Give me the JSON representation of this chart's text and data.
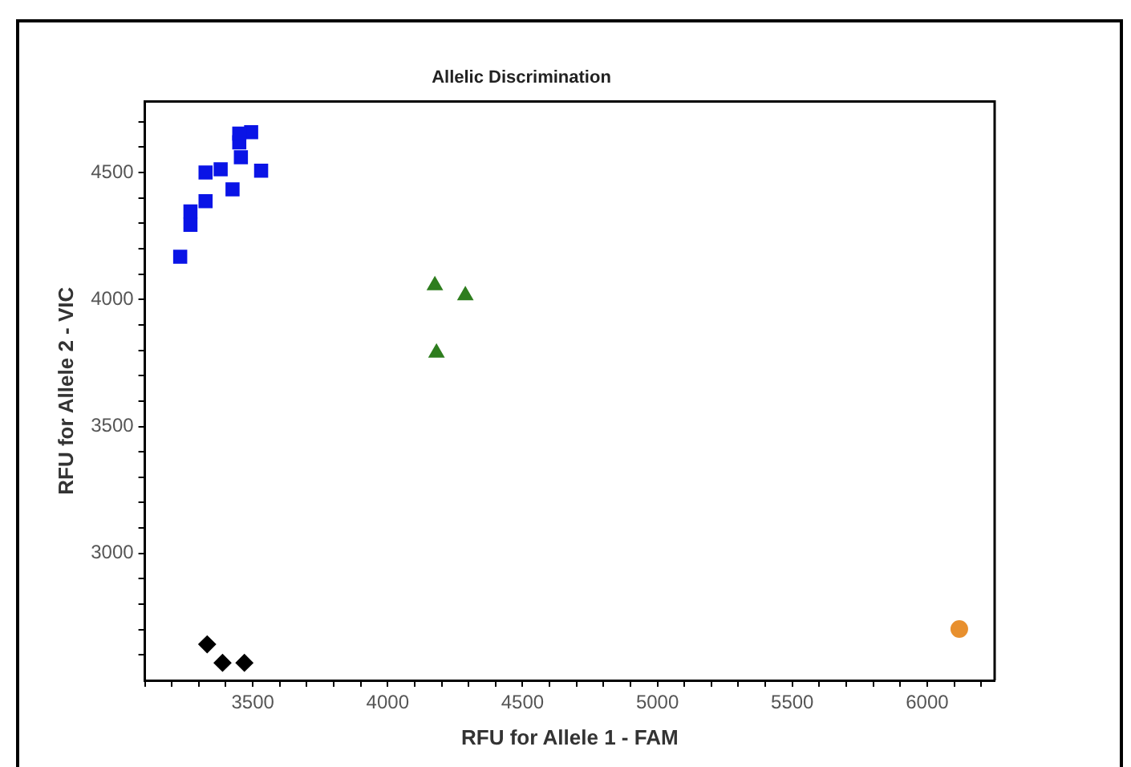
{
  "chart_data": {
    "type": "scatter",
    "title": "Allelic Discrimination",
    "xlabel": "RFU for Allele 1 - FAM",
    "ylabel": "RFU for Allele 2 - VIC",
    "series": [
      {
        "color": "#0a14e6",
        "marker": "square",
        "x": [
          3231,
          3269,
          3269,
          3325,
          3325,
          3381,
          3425,
          3450,
          3456,
          3494,
          3531,
          3450
        ],
        "values": [
          4168,
          4294,
          4347,
          4387,
          4500,
          4513,
          4434,
          4619,
          4560,
          4659,
          4507,
          4653
        ]
      },
      {
        "color": "#2e7d1e",
        "marker": "triangle",
        "x": [
          4175,
          4288,
          4181
        ],
        "values": [
          4055,
          4016,
          3790
        ]
      },
      {
        "color": "#000000",
        "marker": "diamond",
        "x": [
          3331,
          3388,
          3469
        ],
        "values": [
          2642,
          2569,
          2569
        ]
      },
      {
        "color": "#e8902e",
        "marker": "circle",
        "x": [
          6119
        ],
        "values": [
          2702
        ]
      }
    ],
    "xlim": [
      3100,
      6250
    ],
    "xticks": [
      {
        "value": 3100,
        "label": null
      },
      {
        "value": 3200,
        "label": null
      },
      {
        "value": 3300,
        "label": null
      },
      {
        "value": 3400,
        "label": null
      },
      3500,
      {
        "value": 3600,
        "label": null
      },
      {
        "value": 3700,
        "label": null
      },
      {
        "value": 3800,
        "label": null
      },
      {
        "value": 3900,
        "label": null
      },
      4000,
      {
        "value": 4100,
        "label": null
      },
      {
        "value": 4200,
        "label": null
      },
      {
        "value": 4300,
        "label": null
      },
      {
        "value": 4400,
        "label": null
      },
      4500,
      {
        "value": 4600,
        "label": null
      },
      {
        "value": 4700,
        "label": null
      },
      {
        "value": 4800,
        "label": null
      },
      {
        "value": 4900,
        "label": null
      },
      5000,
      {
        "value": 5100,
        "label": null
      },
      {
        "value": 5200,
        "label": null
      },
      {
        "value": 5300,
        "label": null
      },
      {
        "value": 5400,
        "label": null
      },
      5500,
      {
        "value": 5600,
        "label": null
      },
      {
        "value": 5700,
        "label": null
      },
      {
        "value": 5800,
        "label": null
      },
      {
        "value": 5900,
        "label": null
      },
      6000,
      {
        "value": 6100,
        "label": null
      },
      {
        "value": 6200,
        "label": null
      }
    ],
    "ylim": [
      2500,
      4780
    ],
    "yticks": [
      {
        "value": 2600,
        "label": null
      },
      {
        "value": 2700,
        "label": null
      },
      {
        "value": 2800,
        "label": null
      },
      {
        "value": 2900,
        "label": null
      },
      3000,
      {
        "value": 3100,
        "label": null
      },
      {
        "value": 3200,
        "label": null
      },
      {
        "value": 3300,
        "label": null
      },
      {
        "value": 3400,
        "label": null
      },
      3500,
      {
        "value": 3600,
        "label": null
      },
      {
        "value": 3700,
        "label": null
      },
      {
        "value": 3800,
        "label": null
      },
      {
        "value": 3900,
        "label": null
      },
      4000,
      {
        "value": 4100,
        "label": null
      },
      {
        "value": 4200,
        "label": null
      },
      {
        "value": 4300,
        "label": null
      },
      {
        "value": 4400,
        "label": null
      },
      4500,
      {
        "value": 4600,
        "label": null
      },
      {
        "value": 4700,
        "label": null
      }
    ],
    "grid": false,
    "legend": false
  }
}
